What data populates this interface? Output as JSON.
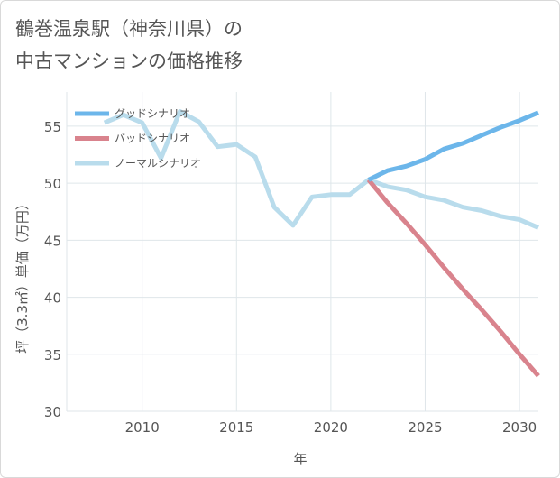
{
  "title_lines": [
    "鶴巻温泉駅（神奈川県）の",
    "中古マンションの価格推移"
  ],
  "colors": {
    "good": "#6cb6ea",
    "bad": "#d9838d",
    "normal": "#b9dcec",
    "grid": "#dfe6ea",
    "text": "#555555"
  },
  "chart_data": {
    "type": "line",
    "title": "鶴巻温泉駅（神奈川県）の中古マンションの価格推移",
    "xlabel": "年",
    "ylabel": "坪（3.3㎡）単価（万円）",
    "xlim": [
      2006,
      2031
    ],
    "ylim": [
      30,
      58
    ],
    "xticks": [
      2010,
      2015,
      2020,
      2025,
      2030
    ],
    "yticks": [
      30,
      35,
      40,
      45,
      50,
      55
    ],
    "grid": true,
    "legend_position": "top-left",
    "series": [
      {
        "name": "グッドシナリオ",
        "key": "good",
        "x": [
          2022,
          2023,
          2024,
          2025,
          2026,
          2027,
          2028,
          2029,
          2030,
          2031
        ],
        "y": [
          50.3,
          51.1,
          51.5,
          52.1,
          53.0,
          53.5,
          54.2,
          54.9,
          55.5,
          56.2
        ]
      },
      {
        "name": "バッドシナリオ",
        "key": "bad",
        "x": [
          2022,
          2023,
          2024,
          2025,
          2026,
          2027,
          2028,
          2029,
          2030,
          2031
        ],
        "y": [
          50.3,
          48.3,
          46.5,
          44.6,
          42.6,
          40.7,
          38.9,
          37.0,
          35.0,
          33.1
        ]
      },
      {
        "name": "ノーマルシナリオ",
        "key": "normal",
        "x": [
          2008,
          2009,
          2010,
          2011,
          2012,
          2013,
          2014,
          2015,
          2016,
          2017,
          2018,
          2019,
          2020,
          2021,
          2022,
          2023,
          2024,
          2025,
          2026,
          2027,
          2028,
          2029,
          2030,
          2031
        ],
        "y": [
          55.3,
          56.0,
          55.3,
          52.2,
          56.3,
          55.4,
          53.2,
          53.4,
          52.3,
          47.9,
          46.3,
          48.8,
          49.0,
          49.0,
          50.3,
          49.7,
          49.4,
          48.8,
          48.5,
          47.9,
          47.6,
          47.1,
          46.8,
          46.1
        ]
      }
    ]
  }
}
